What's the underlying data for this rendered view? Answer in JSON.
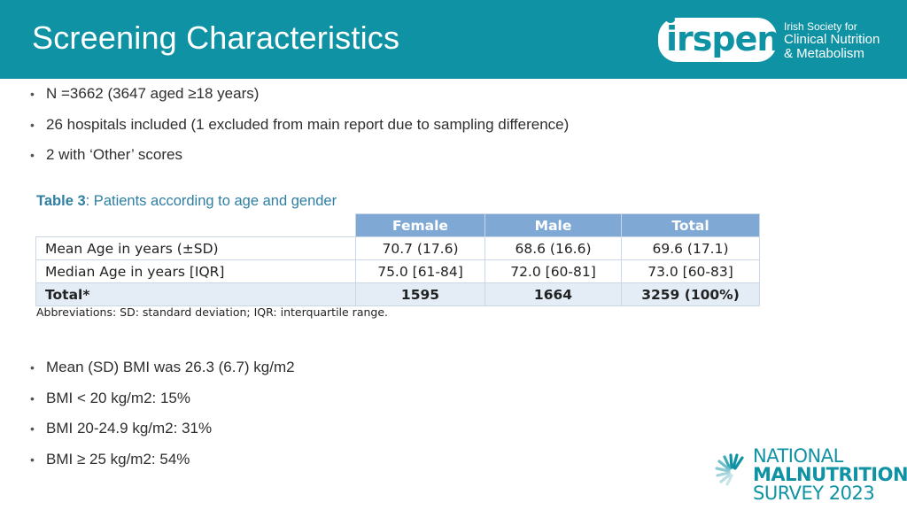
{
  "header": {
    "title": "Screening Characteristics",
    "logo": {
      "wordmark": "irspen",
      "line1": "Irish Society for",
      "line2": "Clinical Nutrition",
      "line3": "& Metabolism"
    }
  },
  "bullets_top": [
    "N =3662 (3647 aged ≥18 years)",
    "26 hospitals included (1 excluded from main report due to sampling difference)",
    "2 with ‘Other’ scores"
  ],
  "table": {
    "caption_label": "Table 3",
    "caption_text": ": Patients according to age and gender",
    "columns": [
      "Female",
      "Male",
      "Total"
    ],
    "rows": [
      {
        "label": "Mean Age in years (±SD)",
        "values": [
          "70.7 (17.6)",
          "68.6 (16.6)",
          "69.6 (17.1)"
        ]
      },
      {
        "label": "Median Age in years [IQR]",
        "values": [
          "75.0 [61-84]",
          "72.0 [60-81]",
          "73.0 [60-83]"
        ]
      },
      {
        "label": "Total*",
        "values": [
          "1595",
          "1664",
          "3259 (100%)"
        ]
      }
    ],
    "abbreviations": "Abbreviations:  SD: standard deviation; IQR: interquartile range."
  },
  "bullets_bottom": [
    "Mean (SD) BMI was 26.3 (6.7) kg/m2",
    "BMI < 20 kg/m2: 15%",
    "BMI 20-24.9 kg/m2: 31%",
    "BMI ≥ 25 kg/m2: 54%"
  ],
  "footer_logo": {
    "line1": "NATIONAL",
    "line2": "MALNUTRITION",
    "line3": "SURVEY 2023"
  },
  "colors": {
    "brand_teal": "#0f93a4",
    "table_header": "#7fa9d4",
    "caption_blue": "#2e7fa2"
  }
}
